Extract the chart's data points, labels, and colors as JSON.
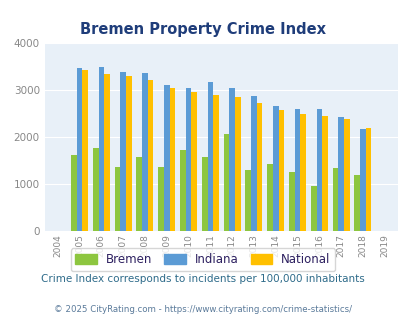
{
  "title": "Bremen Property Crime Index",
  "years": [
    2004,
    2005,
    2006,
    2007,
    2008,
    2009,
    2010,
    2011,
    2012,
    2013,
    2014,
    2015,
    2016,
    2017,
    2018,
    2019
  ],
  "bremen": [
    0,
    1620,
    1775,
    1360,
    1570,
    1370,
    1720,
    1570,
    2060,
    1300,
    1430,
    1250,
    960,
    1350,
    1190,
    0
  ],
  "indiana": [
    0,
    3460,
    3490,
    3380,
    3360,
    3100,
    3040,
    3160,
    3040,
    2870,
    2650,
    2600,
    2600,
    2430,
    2170,
    0
  ],
  "national": [
    0,
    3420,
    3340,
    3290,
    3210,
    3040,
    2950,
    2900,
    2860,
    2730,
    2580,
    2490,
    2450,
    2380,
    2180,
    0
  ],
  "bremen_color": "#8dc63f",
  "indiana_color": "#5b9bd5",
  "national_color": "#ffc000",
  "bg_color": "#e8f0f8",
  "ylim": [
    0,
    4000
  ],
  "yticks": [
    0,
    1000,
    2000,
    3000,
    4000
  ],
  "subtitle": "Crime Index corresponds to incidents per 100,000 inhabitants",
  "footer": "© 2025 CityRating.com - https://www.cityrating.com/crime-statistics/",
  "title_color": "#1f3d7a",
  "subtitle_color": "#2e6b8a",
  "footer_color": "#5a7a9a",
  "legend_text_color": "#2d2060",
  "tick_color": "#888888"
}
